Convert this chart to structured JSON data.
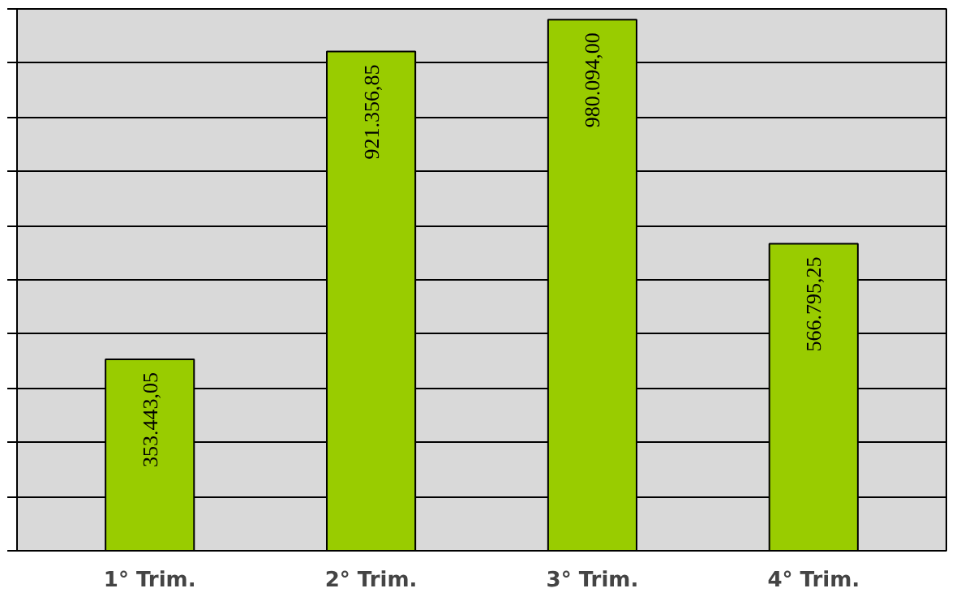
{
  "chart_data": {
    "type": "bar",
    "categories": [
      "1° Trim.",
      "2° Trim.",
      "3° Trim.",
      "4° Trim."
    ],
    "values": [
      353443.05,
      921356.85,
      980094.0,
      566795.25
    ],
    "value_labels": [
      "353.443,05",
      "921.356,85",
      "980.094,00",
      "566.795,25"
    ],
    "color": "#99cc00",
    "ylim": [
      0,
      1000000
    ],
    "yticks": [
      {
        "value": 0,
        "label": null
      },
      {
        "value": 100000,
        "label": null
      },
      {
        "value": 200000,
        "label": null
      },
      {
        "value": 300000,
        "label": null
      },
      {
        "value": 400000,
        "label": null
      },
      {
        "value": 500000,
        "label": null
      },
      {
        "value": 600000,
        "label": null
      },
      {
        "value": 700000,
        "label": null
      },
      {
        "value": 800000,
        "label": null
      },
      {
        "value": 900000,
        "label": null
      },
      {
        "value": 1000000,
        "label": null
      }
    ],
    "grid": "y",
    "tick_labels": "x"
  }
}
